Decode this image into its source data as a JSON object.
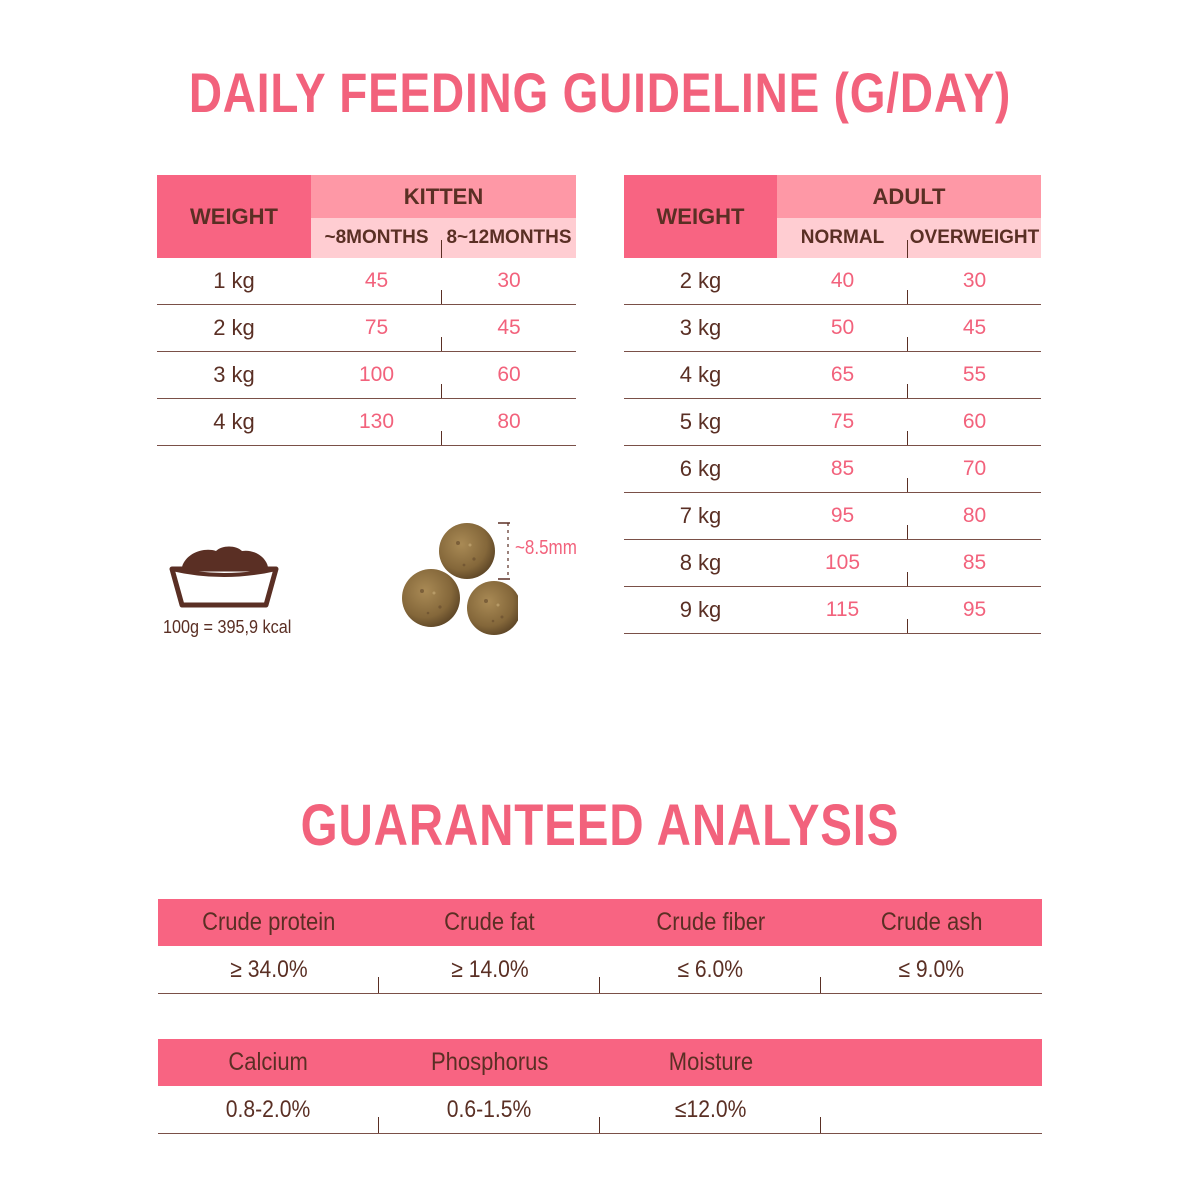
{
  "feeding": {
    "title": "DAILY FEEDING GUIDELINE (G/DAY)",
    "kitten": {
      "weight_header": "WEIGHT",
      "group_header": "KITTEN",
      "col1": "~8MONTHS",
      "col2": "8~12MONTHS",
      "rows": [
        {
          "weight": "1 kg",
          "a": "45",
          "b": "30"
        },
        {
          "weight": "2 kg",
          "a": "75",
          "b": "45"
        },
        {
          "weight": "3 kg",
          "a": "100",
          "b": "60"
        },
        {
          "weight": "4 kg",
          "a": "130",
          "b": "80"
        }
      ]
    },
    "adult": {
      "weight_header": "WEIGHT",
      "group_header": "ADULT",
      "col1": "NORMAL",
      "col2": "OVERWEIGHT",
      "rows": [
        {
          "weight": "2 kg",
          "a": "40",
          "b": "30"
        },
        {
          "weight": "3 kg",
          "a": "50",
          "b": "45"
        },
        {
          "weight": "4 kg",
          "a": "65",
          "b": "55"
        },
        {
          "weight": "5 kg",
          "a": "75",
          "b": "60"
        },
        {
          "weight": "6 kg",
          "a": "85",
          "b": "70"
        },
        {
          "weight": "7 kg",
          "a": "95",
          "b": "80"
        },
        {
          "weight": "8 kg",
          "a": "105",
          "b": "85"
        },
        {
          "weight": "9 kg",
          "a": "115",
          "b": "95"
        }
      ]
    },
    "energy_label": "100g = 395,9 kcal",
    "kibble_size_label": "~8.5mm"
  },
  "analysis": {
    "title": "GUARANTEED ANALYSIS",
    "table1": {
      "headers": [
        "Crude protein",
        "Crude fat",
        "Crude fiber",
        "Crude ash"
      ],
      "values": [
        "≥ 34.0%",
        "≥ 14.0%",
        "≤ 6.0%",
        "≤ 9.0%"
      ]
    },
    "table2": {
      "headers": [
        "Calcium",
        "Phosphorus",
        "Moisture",
        ""
      ],
      "values": [
        "0.8-2.0%",
        "0.6-1.5%",
        "≤12.0%",
        ""
      ]
    }
  },
  "colors": {
    "accent": "#f2627c",
    "header_dark": "#f86482",
    "header_mid": "#fe98a6",
    "header_light": "#ffcdd2",
    "text_brown": "#5a2f24",
    "kibble": "#8a6a3a"
  },
  "icons": [
    "food-bowl-icon",
    "kibble-image"
  ]
}
